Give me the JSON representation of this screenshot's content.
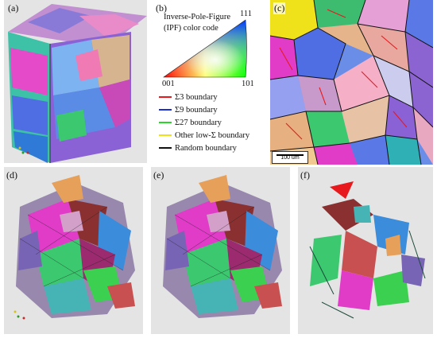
{
  "panels": {
    "a": {
      "label": "(a)"
    },
    "b": {
      "label": "(b)"
    },
    "c": {
      "label": "(c)"
    },
    "d": {
      "label": "(d)"
    },
    "e": {
      "label": "(e)"
    },
    "f": {
      "label": "(f)"
    }
  },
  "ipf": {
    "title_line1": "Inverse-Pole-Figure",
    "title_line2": "(IPF) color code",
    "corner_111": "111",
    "corner_001": "001",
    "corner_101": "101"
  },
  "legend": [
    {
      "label": "Σ3 boundary",
      "color": "#e8191c"
    },
    {
      "label": "Σ9 boundary",
      "color": "#1a2fd6"
    },
    {
      "label": "Σ27 boundary",
      "color": "#2bd62b"
    },
    {
      "label": "Other low-Σ boundary",
      "color": "#f0e21a"
    },
    {
      "label": "Random boundary",
      "color": "#111111"
    }
  ],
  "scalebar": {
    "label": "100 um"
  },
  "colors": {
    "background_3d": "#e4e4e4",
    "grain_palette": [
      "#e03cc8",
      "#3cc86e",
      "#5a78e6",
      "#d2a0c8",
      "#8c64d2",
      "#46b4b4",
      "#e6a05a",
      "#b4508c",
      "#3c8cdc",
      "#96d246",
      "#c85050",
      "#7864b4"
    ]
  }
}
